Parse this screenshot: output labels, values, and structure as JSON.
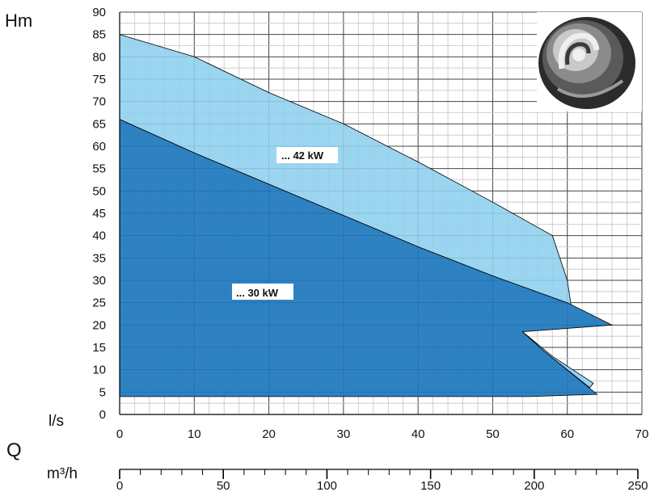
{
  "chart_data": {
    "type": "area",
    "title": "",
    "y_axis": {
      "label": "Hm",
      "range": [
        0,
        90
      ],
      "ticks": [
        0,
        5,
        10,
        15,
        20,
        25,
        30,
        35,
        40,
        45,
        50,
        55,
        60,
        65,
        70,
        75,
        80,
        85,
        90
      ]
    },
    "x_axis": {
      "label": "l/s",
      "range": [
        0,
        70
      ],
      "ticks": [
        0,
        10,
        20,
        30,
        40,
        50,
        60,
        70
      ]
    },
    "x_axis_secondary": {
      "label": "m³/h",
      "range": [
        0,
        250
      ],
      "ticks": [
        0,
        50,
        100,
        150,
        200,
        250
      ]
    },
    "quantity_label": "Q",
    "grid": true,
    "series": [
      {
        "label": "... 42 kW",
        "color": "#8ecfee",
        "upper": [
          [
            0,
            85
          ],
          [
            10,
            80
          ],
          [
            20,
            72
          ],
          [
            30,
            65
          ],
          [
            40,
            56.5
          ],
          [
            50,
            47.5
          ],
          [
            58,
            40
          ],
          [
            60,
            30
          ],
          [
            60.5,
            24.5
          ]
        ],
        "lower": [
          [
            0,
            66
          ],
          [
            10,
            58.5
          ],
          [
            20,
            51.5
          ],
          [
            30,
            44.5
          ],
          [
            40,
            37.5
          ],
          [
            50,
            31
          ],
          [
            60.5,
            24.5
          ]
        ]
      },
      {
        "label": "... 30 kW",
        "color": "#1d77bd",
        "upper": [
          [
            0,
            66
          ],
          [
            10,
            58.5
          ],
          [
            20,
            51.5
          ],
          [
            30,
            44.5
          ],
          [
            40,
            37.5
          ],
          [
            50,
            31
          ],
          [
            60,
            25
          ],
          [
            66,
            20
          ],
          [
            54,
            18.5
          ],
          [
            57,
            14
          ],
          [
            64,
            4.5
          ]
        ],
        "lower": [
          [
            0,
            4
          ],
          [
            30,
            4
          ],
          [
            50,
            4
          ],
          [
            55,
            4
          ],
          [
            60,
            4.3
          ],
          [
            64,
            4.5
          ]
        ]
      },
      {
        "label": "",
        "color": "#8ecfee",
        "points": [
          [
            54,
            18.5
          ],
          [
            58,
            13
          ],
          [
            63.5,
            7
          ],
          [
            63,
            6
          ],
          [
            57,
            14
          ]
        ]
      }
    ]
  }
}
